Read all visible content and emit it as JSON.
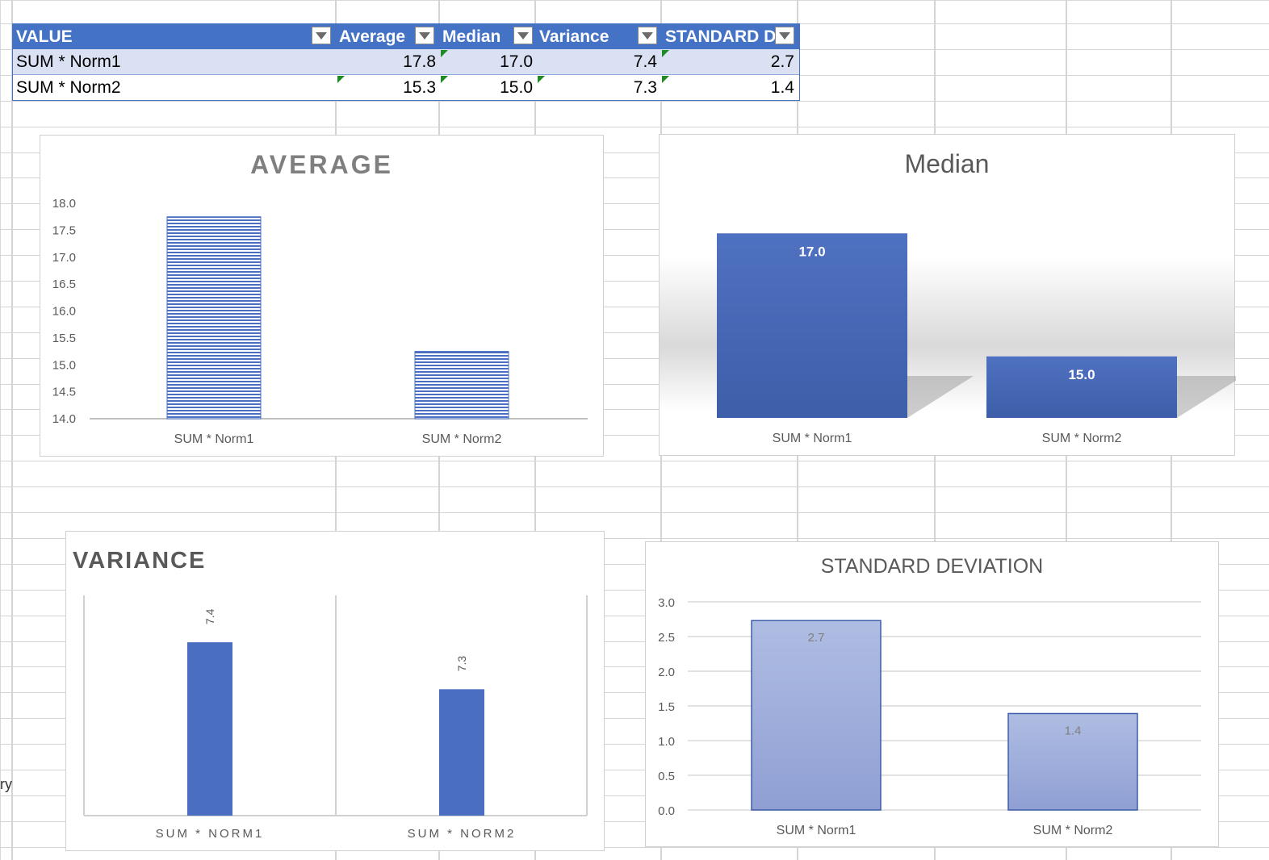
{
  "table": {
    "headers": [
      "VALUE",
      "Average",
      "Median",
      "Variance",
      "STANDARD D"
    ],
    "rows": [
      {
        "name": "SUM * Norm1",
        "average": "17.8",
        "median": "17.0",
        "variance": "7.4",
        "std": "2.7"
      },
      {
        "name": "SUM * Norm2",
        "average": "15.3",
        "median": "15.0",
        "variance": "7.3",
        "std": "1.4"
      }
    ]
  },
  "stray_text": "ry",
  "colors": {
    "accent": "#4472c4",
    "header_bg": "#4472c4",
    "band": "#d9e1f2",
    "std_bar": "#a2b3dd"
  },
  "chart_data": [
    {
      "type": "bar",
      "title": "AVERAGE",
      "categories": [
        "SUM * Norm1",
        "SUM * Norm2"
      ],
      "values": [
        17.75,
        15.25
      ],
      "ylim": [
        14.0,
        18.0
      ],
      "yticks": [
        "18.0",
        "17.5",
        "17.0",
        "16.5",
        "16.0",
        "15.5",
        "15.0",
        "14.5",
        "14.0"
      ],
      "grid": false,
      "pattern": "horizontal-stripes"
    },
    {
      "type": "bar",
      "title": "Median",
      "categories": [
        "SUM * Norm1",
        "SUM * Norm2"
      ],
      "values": [
        17.0,
        15.0
      ],
      "data_labels": [
        "17.0",
        "15.0"
      ],
      "ylim": [
        14.0,
        18.0
      ],
      "grid": false
    },
    {
      "type": "bar",
      "title": "VARIANCE",
      "categories": [
        "SUM * NORM1",
        "SUM * NORM2"
      ],
      "values": [
        7.4,
        7.3
      ],
      "data_labels": [
        "7.4",
        "7.3"
      ],
      "ylim": [
        7.0,
        7.45
      ],
      "grid": false
    },
    {
      "type": "bar",
      "title": "STANDARD DEVIATION",
      "categories": [
        "SUM * Norm1",
        "SUM * Norm2"
      ],
      "values": [
        2.73,
        1.39
      ],
      "data_labels": [
        "2.7",
        "1.4"
      ],
      "ylim": [
        0.0,
        3.0
      ],
      "yticks": [
        "3.0",
        "2.5",
        "2.0",
        "1.5",
        "1.0",
        "0.5",
        "0.0"
      ],
      "grid": true
    }
  ]
}
